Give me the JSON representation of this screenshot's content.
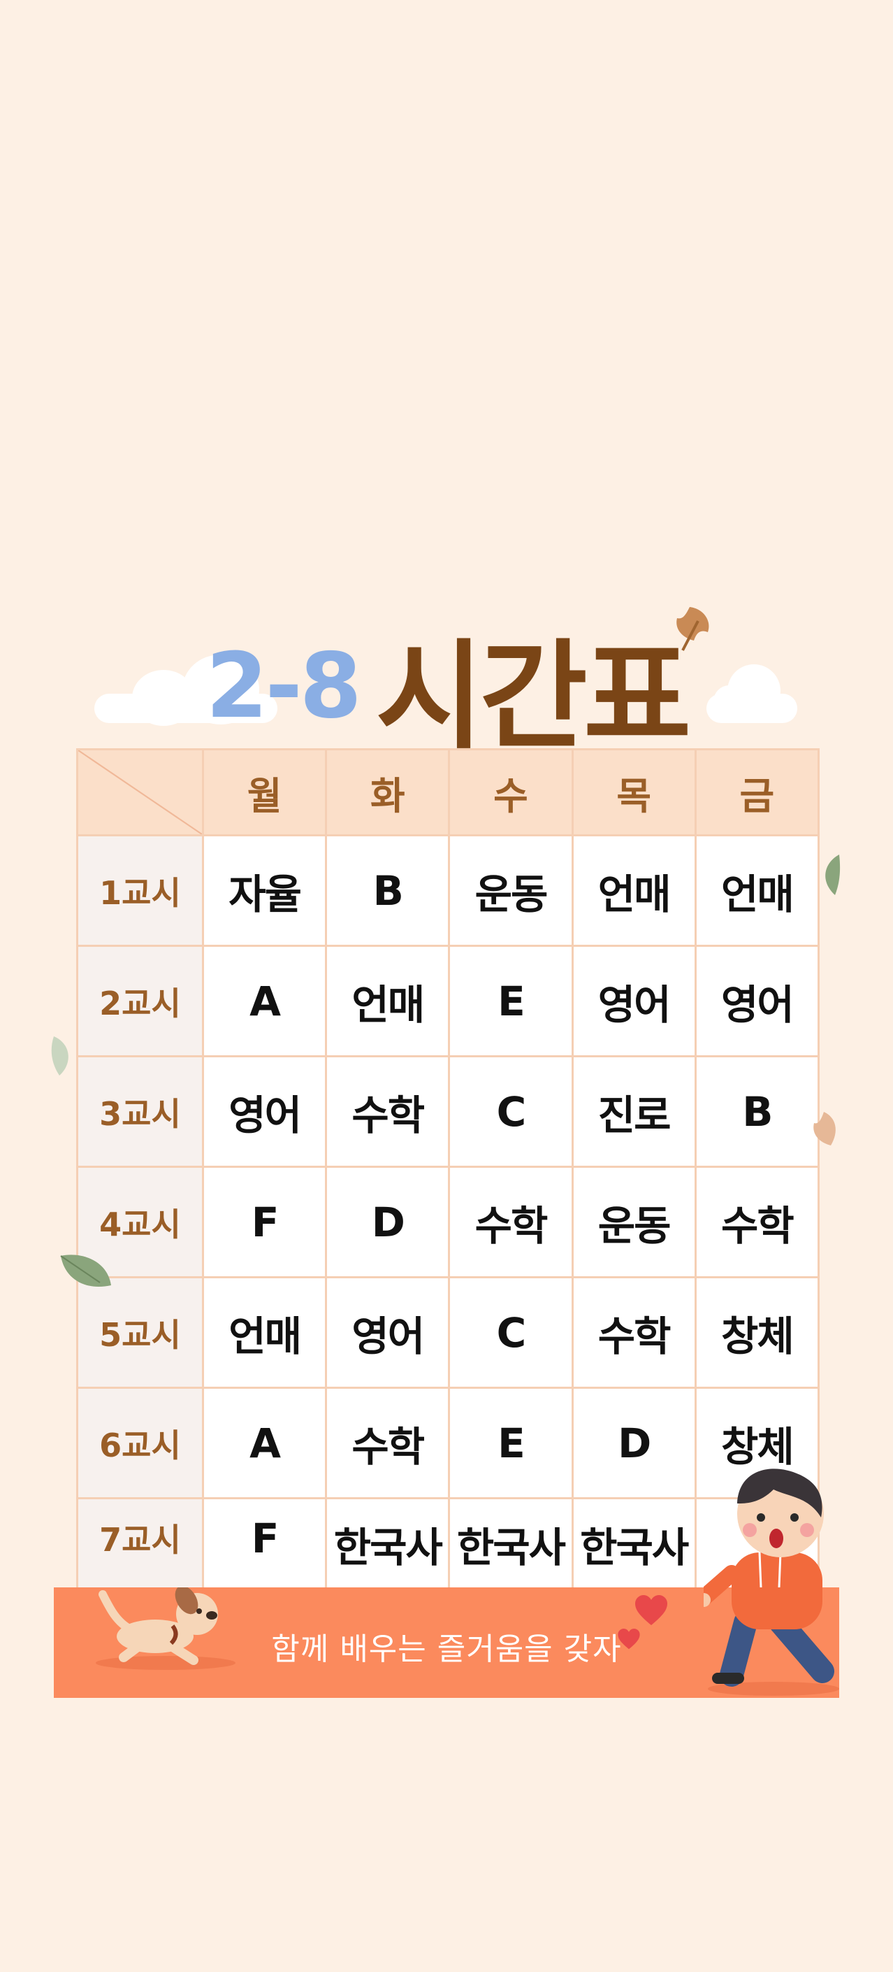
{
  "title": {
    "class_name": "2-8",
    "main": "시간표"
  },
  "days": [
    "월",
    "화",
    "수",
    "목",
    "금"
  ],
  "periods": [
    {
      "label": "1교시",
      "subjects": [
        "자율",
        "B",
        "운동",
        "언매",
        "언매"
      ]
    },
    {
      "label": "2교시",
      "subjects": [
        "A",
        "언매",
        "E",
        "영어",
        "영어"
      ]
    },
    {
      "label": "3교시",
      "subjects": [
        "영어",
        "수학",
        "C",
        "진로",
        "B"
      ]
    },
    {
      "label": "4교시",
      "subjects": [
        "F",
        "D",
        "수학",
        "운동",
        "수학"
      ]
    },
    {
      "label": "5교시",
      "subjects": [
        "언매",
        "영어",
        "C",
        "수학",
        "창체"
      ]
    },
    {
      "label": "6교시",
      "subjects": [
        "A",
        "수학",
        "E",
        "D",
        "창체"
      ]
    },
    {
      "label": "7교시",
      "subjects": [
        "F",
        "한국사",
        "한국사",
        "한국사",
        ""
      ]
    }
  ],
  "footer": {
    "slogan": "함께 배우는 즐거움을 갖자"
  },
  "colors": {
    "background": "#fdf0e4",
    "title_class": "#8aaee4",
    "title_main": "#7a4516",
    "header_bg": "#fbdfc9",
    "period_text": "#9a5e27",
    "grid_line": "#f5cfb4",
    "footer_bg": "#fb8a5d"
  },
  "icons": [
    "leaf-icon",
    "cloud-icon",
    "dog-illustration",
    "boy-illustration",
    "heart-icon"
  ]
}
